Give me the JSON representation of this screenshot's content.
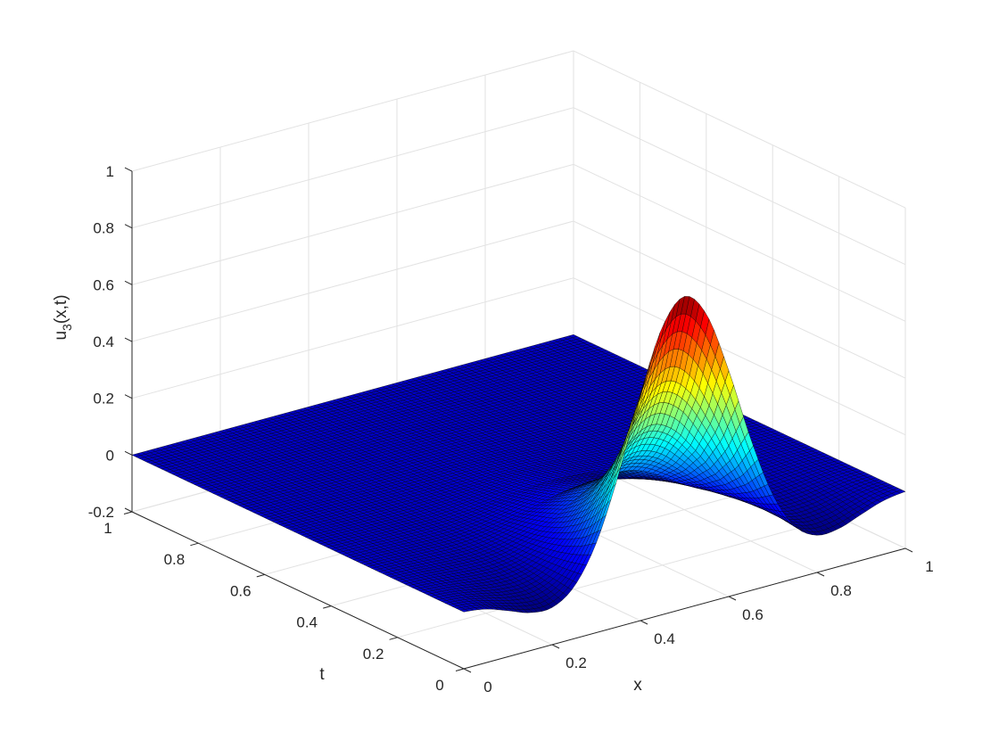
{
  "chart_data": {
    "type": "surface",
    "colormap": "jet",
    "edge_color": "#000000",
    "grid": true,
    "xlabel": "x",
    "ylabel": "t",
    "zlabel": {
      "base": "u",
      "subscript": "3",
      "rest": "(x,t)"
    },
    "xlim": [
      0,
      1
    ],
    "ylim": [
      0,
      1
    ],
    "zlim": [
      -0.2,
      1
    ],
    "x_ticks": [
      "0",
      "0.2",
      "0.4",
      "0.6",
      "0.8",
      "1"
    ],
    "t_ticks": [
      "0",
      "0.2",
      "0.4",
      "0.6",
      "0.8",
      "1"
    ],
    "z_ticks": [
      "-0.2",
      "0",
      "0.2",
      "0.4",
      "0.6",
      "0.8",
      "1"
    ],
    "x": [
      0,
      0.05,
      0.1,
      0.15,
      0.2,
      0.25,
      0.3,
      0.35,
      0.4,
      0.45,
      0.5,
      0.55,
      0.6,
      0.65,
      0.7,
      0.75,
      0.8,
      0.85,
      0.9,
      0.95,
      1
    ],
    "t": [
      0,
      0.05,
      0.1,
      0.15,
      0.2,
      0.3,
      0.4,
      0.5,
      0.6,
      0.8,
      1
    ],
    "z": [
      [
        0,
        -0.011,
        -0.038,
        -0.066,
        -0.069,
        -0.016,
        0.116,
        0.334,
        0.596,
        0.814,
        0.9,
        0.814,
        0.596,
        0.334,
        0.116,
        -0.016,
        -0.069,
        -0.066,
        -0.038,
        -0.011,
        0
      ],
      [
        0,
        -0.007,
        -0.025,
        -0.043,
        -0.045,
        -0.011,
        0.076,
        0.22,
        0.393,
        0.536,
        0.593,
        0.536,
        0.393,
        0.22,
        0.076,
        -0.011,
        -0.045,
        -0.043,
        -0.025,
        -0.007,
        0
      ],
      [
        0,
        -0.005,
        -0.017,
        -0.029,
        -0.03,
        -0.007,
        0.05,
        0.145,
        0.259,
        0.354,
        0.392,
        0.354,
        0.259,
        0.145,
        0.05,
        -0.007,
        -0.03,
        -0.029,
        -0.017,
        -0.005,
        0
      ],
      [
        0,
        -0.003,
        -0.011,
        -0.019,
        -0.02,
        -0.005,
        0.033,
        0.096,
        0.171,
        0.234,
        0.258,
        0.234,
        0.171,
        0.096,
        0.033,
        -0.005,
        -0.02,
        -0.019,
        -0.011,
        -0.003,
        0
      ],
      [
        0,
        -0.002,
        -0.007,
        -0.012,
        -0.013,
        -0.003,
        0.022,
        0.063,
        0.113,
        0.154,
        0.17,
        0.154,
        0.113,
        0.063,
        0.022,
        -0.003,
        -0.013,
        -0.012,
        -0.007,
        -0.002,
        0
      ],
      [
        0,
        -0.001,
        -0.003,
        -0.005,
        -0.006,
        -0.001,
        0.01,
        0.027,
        0.049,
        0.067,
        0.074,
        0.067,
        0.049,
        0.027,
        0.01,
        -0.001,
        -0.006,
        -0.005,
        -0.003,
        -0.001,
        0
      ],
      [
        0,
        0,
        -0.001,
        -0.002,
        -0.002,
        -0.001,
        0.004,
        0.012,
        0.021,
        0.029,
        0.032,
        0.029,
        0.021,
        0.012,
        0.004,
        -0.001,
        -0.002,
        -0.002,
        -0.001,
        0,
        0
      ],
      [
        0,
        0,
        -0.001,
        -0.001,
        -0.001,
        0,
        0.002,
        0.005,
        0.009,
        0.013,
        0.014,
        0.013,
        0.009,
        0.005,
        0.002,
        0,
        -0.001,
        -0.001,
        -0.001,
        0,
        0
      ],
      [
        0,
        0,
        0,
        0,
        0,
        0,
        0.001,
        0.002,
        0.004,
        0.005,
        0.006,
        0.005,
        0.004,
        0.002,
        0.001,
        0,
        0,
        0,
        0,
        0,
        0
      ],
      [
        0,
        0,
        0,
        0,
        0,
        0,
        0,
        0,
        0.001,
        0.001,
        0.001,
        0.001,
        0.001,
        0,
        0,
        0,
        0,
        0,
        0,
        0,
        0
      ],
      [
        0,
        0,
        0,
        0,
        0,
        0,
        0,
        0,
        0,
        0,
        0,
        0,
        0,
        0,
        0,
        0,
        0,
        0,
        0,
        0,
        0
      ]
    ]
  }
}
